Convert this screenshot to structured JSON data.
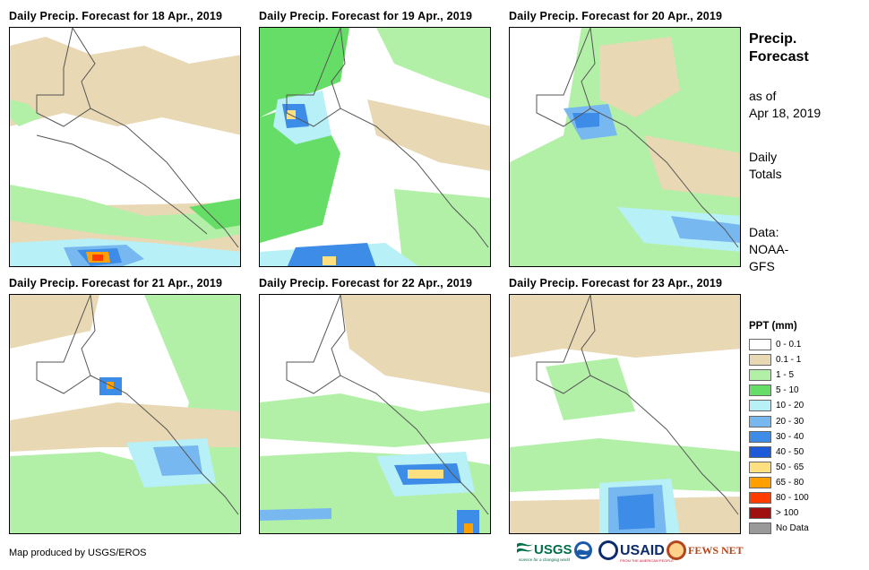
{
  "panels": [
    {
      "title": "Daily Precip. Forecast for 18 Apr., 2019"
    },
    {
      "title": "Daily Precip. Forecast for 19 Apr., 2019"
    },
    {
      "title": "Daily Precip. Forecast for 20 Apr., 2019"
    },
    {
      "title": "Daily Precip. Forecast for 21 Apr., 2019"
    },
    {
      "title": "Daily Precip. Forecast for 22 Apr., 2019"
    },
    {
      "title": "Daily Precip. Forecast for 23 Apr., 2019"
    }
  ],
  "side": {
    "title_line1": "Precip.",
    "title_line2": "Forecast",
    "asof_line1": "as of",
    "asof_line2": "Apr 18, 2019",
    "daily_line1": "Daily",
    "daily_line2": "Totals",
    "data_line1": "Data:",
    "data_line2": "NOAA-",
    "data_line3": "GFS"
  },
  "legend": {
    "title": "PPT (mm)",
    "items": [
      {
        "label": "0 - 0.1",
        "color": "#ffffff"
      },
      {
        "label": "0.1 - 1",
        "color": "#e8d8b4"
      },
      {
        "label": "1 - 5",
        "color": "#b2f0a8"
      },
      {
        "label": "5 - 10",
        "color": "#66dd66"
      },
      {
        "label": "10 - 20",
        "color": "#b8f0f8"
      },
      {
        "label": "20 - 30",
        "color": "#78b8f0"
      },
      {
        "label": "30 - 40",
        "color": "#3c8ce8"
      },
      {
        "label": "40 - 50",
        "color": "#1e5ad8"
      },
      {
        "label": "50 - 65",
        "color": "#ffe080"
      },
      {
        "label": "65 - 80",
        "color": "#ffa000"
      },
      {
        "label": "80 - 100",
        "color": "#ff3c00"
      },
      {
        "label": "> 100",
        "color": "#a01010"
      },
      {
        "label": "No Data",
        "color": "#999999"
      }
    ]
  },
  "credit": "Map produced by USGS/EROS",
  "logos": {
    "usgs": "USGS",
    "usgs_tag": "science for a changing world",
    "usaid": "USAID",
    "usaid_tag": "FROM THE AMERICAN PEOPLE",
    "fews": "FEWS NET"
  }
}
